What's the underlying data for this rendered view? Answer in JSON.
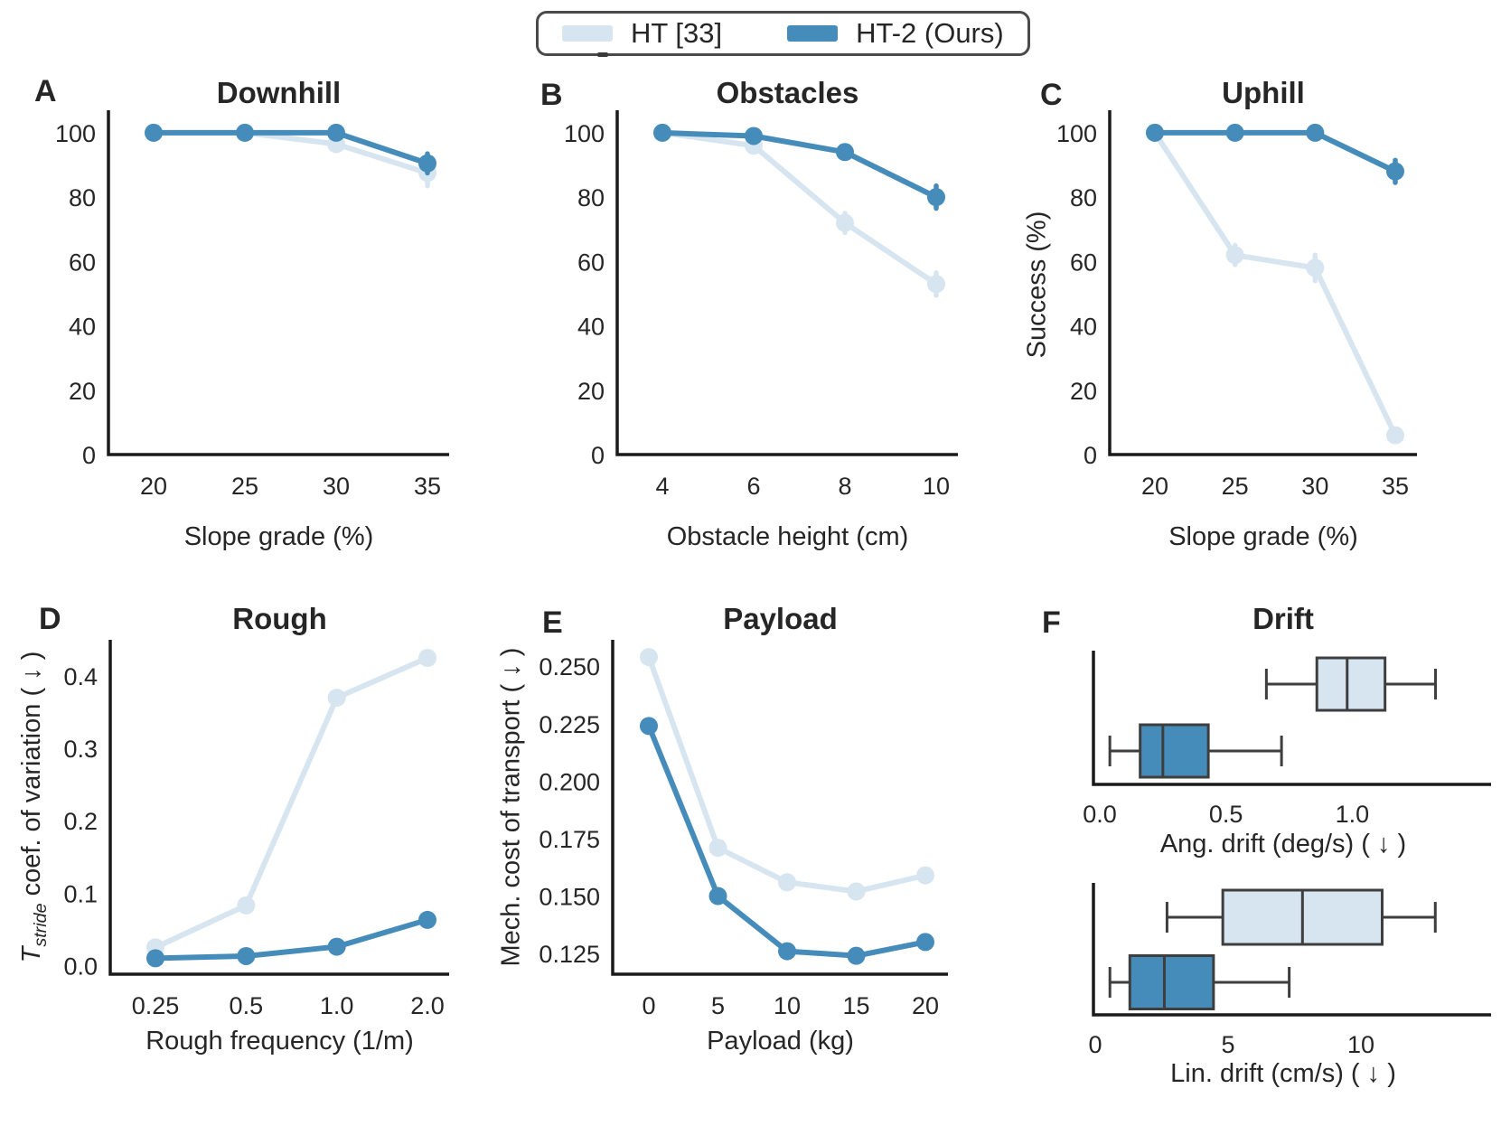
{
  "colors": {
    "light": "#d7e5f0",
    "dark": "#468cba",
    "box_edge": "#3e3e3e",
    "spine": "#1a1a1a",
    "text": "#262626"
  },
  "legend": {
    "items": [
      {
        "label": "HT [33]",
        "color": "light"
      },
      {
        "label": "HT-2 (Ours)",
        "color": "dark"
      }
    ]
  },
  "panels": [
    {
      "letter": "A",
      "title": "Downhill",
      "xlabel": "Slope grade (%)"
    },
    {
      "letter": "B",
      "title": "Obstacles",
      "xlabel": "Obstacle height (cm)"
    },
    {
      "letter": "C",
      "title": "Uphill",
      "xlabel": "Slope grade (%)",
      "ylabel": "Success (%)"
    },
    {
      "letter": "D",
      "title": "Rough",
      "xlabel": "Rough frequency (1/m)",
      "ylabel_rich": [
        {
          "t": "T",
          "s": "i"
        },
        {
          "t": "stride",
          "s": "isub"
        },
        {
          "t": " coef. of variation ( ↓ )",
          "s": ""
        }
      ]
    },
    {
      "letter": "E",
      "title": "Payload",
      "xlabel": "Payload (kg)",
      "ylabel": "Mech. cost of transport ( ↓ )"
    },
    {
      "letter": "F",
      "title": "Drift",
      "xlabel_top": "Ang. drift (deg/s) ( ↓ )",
      "xlabel_bottom": "Lin. drift (cm/s) ( ↓ )"
    }
  ],
  "chart_data": [
    {
      "id": "downhill",
      "type": "line",
      "title": "Downhill",
      "xlabel": "Slope grade (%)",
      "categories": [
        "20",
        "25",
        "30",
        "35"
      ],
      "ylim": [
        0,
        107
      ],
      "yticks": [
        0,
        20,
        40,
        60,
        80,
        100
      ],
      "ytick_labels": [
        "0",
        "20",
        "40",
        "60",
        "80",
        "100"
      ],
      "series": [
        {
          "name": "HT [33]",
          "color": "light",
          "values": [
            100,
            100,
            96.5,
            87.5
          ],
          "err": [
            0,
            0,
            1.5,
            4
          ]
        },
        {
          "name": "HT-2 (Ours)",
          "color": "dark",
          "values": [
            100,
            100,
            100,
            90.5
          ],
          "err": [
            0,
            0,
            0,
            3
          ]
        }
      ]
    },
    {
      "id": "obstacles",
      "type": "line",
      "title": "Obstacles",
      "xlabel": "Obstacle height (cm)",
      "categories": [
        "4",
        "6",
        "8",
        "10"
      ],
      "ylim": [
        0,
        107
      ],
      "yticks": [
        0,
        20,
        40,
        60,
        80,
        100
      ],
      "ytick_labels": [
        "0",
        "20",
        "40",
        "60",
        "80",
        "100"
      ],
      "series": [
        {
          "name": "HT [33]",
          "color": "light",
          "values": [
            100,
            96,
            72,
            53
          ],
          "err": [
            0,
            0,
            3,
            3.5
          ]
        },
        {
          "name": "HT-2 (Ours)",
          "color": "dark",
          "values": [
            100,
            99,
            94,
            80
          ],
          "err": [
            0,
            0,
            1,
            3.5
          ]
        }
      ]
    },
    {
      "id": "uphill",
      "type": "line",
      "title": "Uphill",
      "xlabel": "Slope grade (%)",
      "ylabel": "Success (%)",
      "categories": [
        "20",
        "25",
        "30",
        "35"
      ],
      "ylim": [
        0,
        107
      ],
      "yticks": [
        0,
        20,
        40,
        60,
        80,
        100
      ],
      "ytick_labels": [
        "0",
        "20",
        "40",
        "60",
        "80",
        "100"
      ],
      "series": [
        {
          "name": "HT [33]",
          "color": "light",
          "values": [
            100,
            62,
            58,
            6
          ],
          "err": [
            0,
            3,
            4,
            1
          ]
        },
        {
          "name": "HT-2 (Ours)",
          "color": "dark",
          "values": [
            100,
            100,
            100,
            88
          ],
          "err": [
            0,
            0,
            0,
            3.5
          ]
        }
      ]
    },
    {
      "id": "rough",
      "type": "line",
      "title": "Rough",
      "xlabel": "Rough frequency (1/m)",
      "ylabel": "T_stride coef. of variation (down)",
      "categories": [
        "0.25",
        "0.5",
        "1.0",
        "2.0"
      ],
      "ylim": [
        -0.012,
        0.45
      ],
      "yticks": [
        0.0,
        0.1,
        0.2,
        0.3,
        0.4
      ],
      "ytick_labels": [
        "0.0",
        "0.1",
        "0.2",
        "0.3",
        "0.4"
      ],
      "series": [
        {
          "name": "HT [33]",
          "color": "light",
          "values": [
            0.025,
            0.083,
            0.37,
            0.425
          ],
          "err": [
            0,
            0,
            0,
            0
          ]
        },
        {
          "name": "HT-2 (Ours)",
          "color": "dark",
          "values": [
            0.01,
            0.013,
            0.026,
            0.063
          ],
          "err": [
            0,
            0,
            0,
            0
          ]
        }
      ]
    },
    {
      "id": "payload",
      "type": "line",
      "title": "Payload",
      "xlabel": "Payload (kg)",
      "ylabel": "Mech. cost of transport (down)",
      "categories": [
        "0",
        "5",
        "10",
        "15",
        "20"
      ],
      "ylim": [
        0.116,
        0.2615
      ],
      "yticks": [
        0.125,
        0.15,
        0.175,
        0.2,
        0.225,
        0.25
      ],
      "ytick_labels": [
        "0.125",
        "0.150",
        "0.175",
        "0.200",
        "0.225",
        "0.250"
      ],
      "series": [
        {
          "name": "HT [33]",
          "color": "light",
          "values": [
            0.254,
            0.171,
            0.156,
            0.152,
            0.159
          ],
          "err": [
            0,
            0,
            0,
            0,
            0
          ]
        },
        {
          "name": "HT-2 (Ours)",
          "color": "dark",
          "values": [
            0.224,
            0.15,
            0.126,
            0.124,
            0.13
          ],
          "err": [
            0,
            0,
            0,
            0,
            0
          ]
        }
      ]
    },
    {
      "id": "angdrift",
      "type": "box",
      "title": "Drift",
      "orientation": "horizontal",
      "xlabel": "Ang. drift (deg/s) ( down )",
      "xlim": [
        -0.025,
        1.55
      ],
      "xticks": [
        0,
        0.5,
        1.0
      ],
      "xtick_labels": [
        "0.0",
        "0.5",
        "1.0"
      ],
      "series": [
        {
          "name": "HT [33]",
          "color": "light",
          "whisker_low": 0.66,
          "q1": 0.86,
          "median": 0.98,
          "q3": 1.13,
          "whisker_high": 1.33
        },
        {
          "name": "HT-2 (Ours)",
          "color": "dark",
          "whisker_low": 0.04,
          "q1": 0.16,
          "median": 0.25,
          "q3": 0.43,
          "whisker_high": 0.72
        }
      ]
    },
    {
      "id": "lindrift",
      "type": "box",
      "title": "Drift",
      "orientation": "horizontal",
      "xlabel": "Lin. drift (cm/s) ( down )",
      "xlim": [
        -0.07,
        14.9
      ],
      "xticks": [
        0,
        5,
        10
      ],
      "xtick_labels": [
        "0",
        "5",
        "10"
      ],
      "series": [
        {
          "name": "HT [33]",
          "color": "light",
          "whisker_low": 2.7,
          "q1": 4.8,
          "median": 7.8,
          "q3": 10.8,
          "whisker_high": 12.8
        },
        {
          "name": "HT-2 (Ours)",
          "color": "dark",
          "whisker_low": 0.55,
          "q1": 1.3,
          "median": 2.6,
          "q3": 4.45,
          "whisker_high": 7.3
        }
      ]
    }
  ]
}
